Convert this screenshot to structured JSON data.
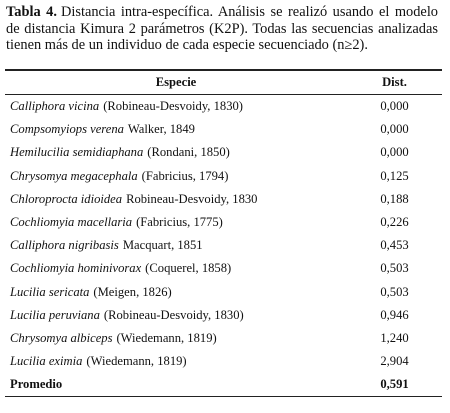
{
  "caption": {
    "label": "Tabla 4.",
    "text": "Distancia intra-específica. Análisis se realizó usando el modelo de distancia Kimura 2 parámetros (K2P). Todas las secuencias analizadas tienen más de un individuo de cada especie secuenciado (n≥2)."
  },
  "table": {
    "headers": [
      "Especie",
      "Dist."
    ],
    "rows": [
      {
        "name": "Calliphora vicina",
        "authority": "(Robineau-Desvoidy, 1830)",
        "dist": "0,000"
      },
      {
        "name": "Compsomyiops verena",
        "authority": "Walker, 1849",
        "dist": "0,000"
      },
      {
        "name": "Hemilucilia semidiaphana",
        "authority": "(Rondani, 1850)",
        "dist": "0,000"
      },
      {
        "name": "Chrysomya megacephala",
        "authority": "(Fabricius, 1794)",
        "dist": "0,125"
      },
      {
        "name": "Chloroprocta idioidea",
        "authority": "Robineau-Desvoidy, 1830",
        "dist": "0,188"
      },
      {
        "name": "Cochliomyia macellaria",
        "authority": "(Fabricius, 1775)",
        "dist": "0,226"
      },
      {
        "name": "Calliphora nigribasis",
        "authority": "Macquart, 1851",
        "dist": "0,453"
      },
      {
        "name": "Cochliomyia hominivorax",
        "authority": "(Coquerel, 1858)",
        "dist": "0,503"
      },
      {
        "name": "Lucilia sericata",
        "authority": "(Meigen, 1826)",
        "dist": "0,503"
      },
      {
        "name": "Lucilia peruviana",
        "authority": "(Robineau-Desvoidy, 1830)",
        "dist": "0,946"
      },
      {
        "name": "Chrysomya albiceps",
        "authority": "(Wiedemann, 1819)",
        "dist": "1,240"
      },
      {
        "name": "Lucilia eximia",
        "authority": "(Wiedemann, 1819)",
        "dist": "2,904"
      }
    ],
    "footer": {
      "label": "Promedio",
      "dist": "0,591"
    }
  }
}
